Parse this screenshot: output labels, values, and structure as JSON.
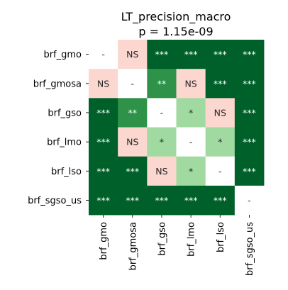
{
  "chart_data": {
    "type": "heatmap",
    "title": "LT_precision_macro",
    "subtitle": "p = 1.15e-09",
    "row_labels": [
      "brf_gmo",
      "brf_gmosa",
      "brf_gso",
      "brf_lmo",
      "brf_lso",
      "brf_sgso_us"
    ],
    "col_labels": [
      "brf_gmo",
      "brf_gmosa",
      "brf_gso",
      "brf_lmo",
      "brf_lso",
      "brf_sgso_us"
    ],
    "cells": [
      [
        "-",
        "NS",
        "***",
        "***",
        "***",
        "***"
      ],
      [
        "NS",
        "-",
        "**",
        "NS",
        "***",
        "***"
      ],
      [
        "***",
        "**",
        "-",
        "*",
        "NS",
        "***"
      ],
      [
        "***",
        "NS",
        "*",
        "-",
        "*",
        "***"
      ],
      [
        "***",
        "***",
        "NS",
        "*",
        "-",
        "***"
      ],
      [
        "***",
        "***",
        "***",
        "***",
        "***",
        "-"
      ]
    ],
    "level_colors": {
      "-": "#ffffff",
      "NS": "#fbd7d0",
      "*": "#a1daa0",
      "**": "#2e9248",
      "***": "#00602a"
    },
    "text_colors": {
      "-": "#262626",
      "NS": "#262626",
      "*": "#262626",
      "**": "#ffffff",
      "***": "#ffffff"
    }
  }
}
